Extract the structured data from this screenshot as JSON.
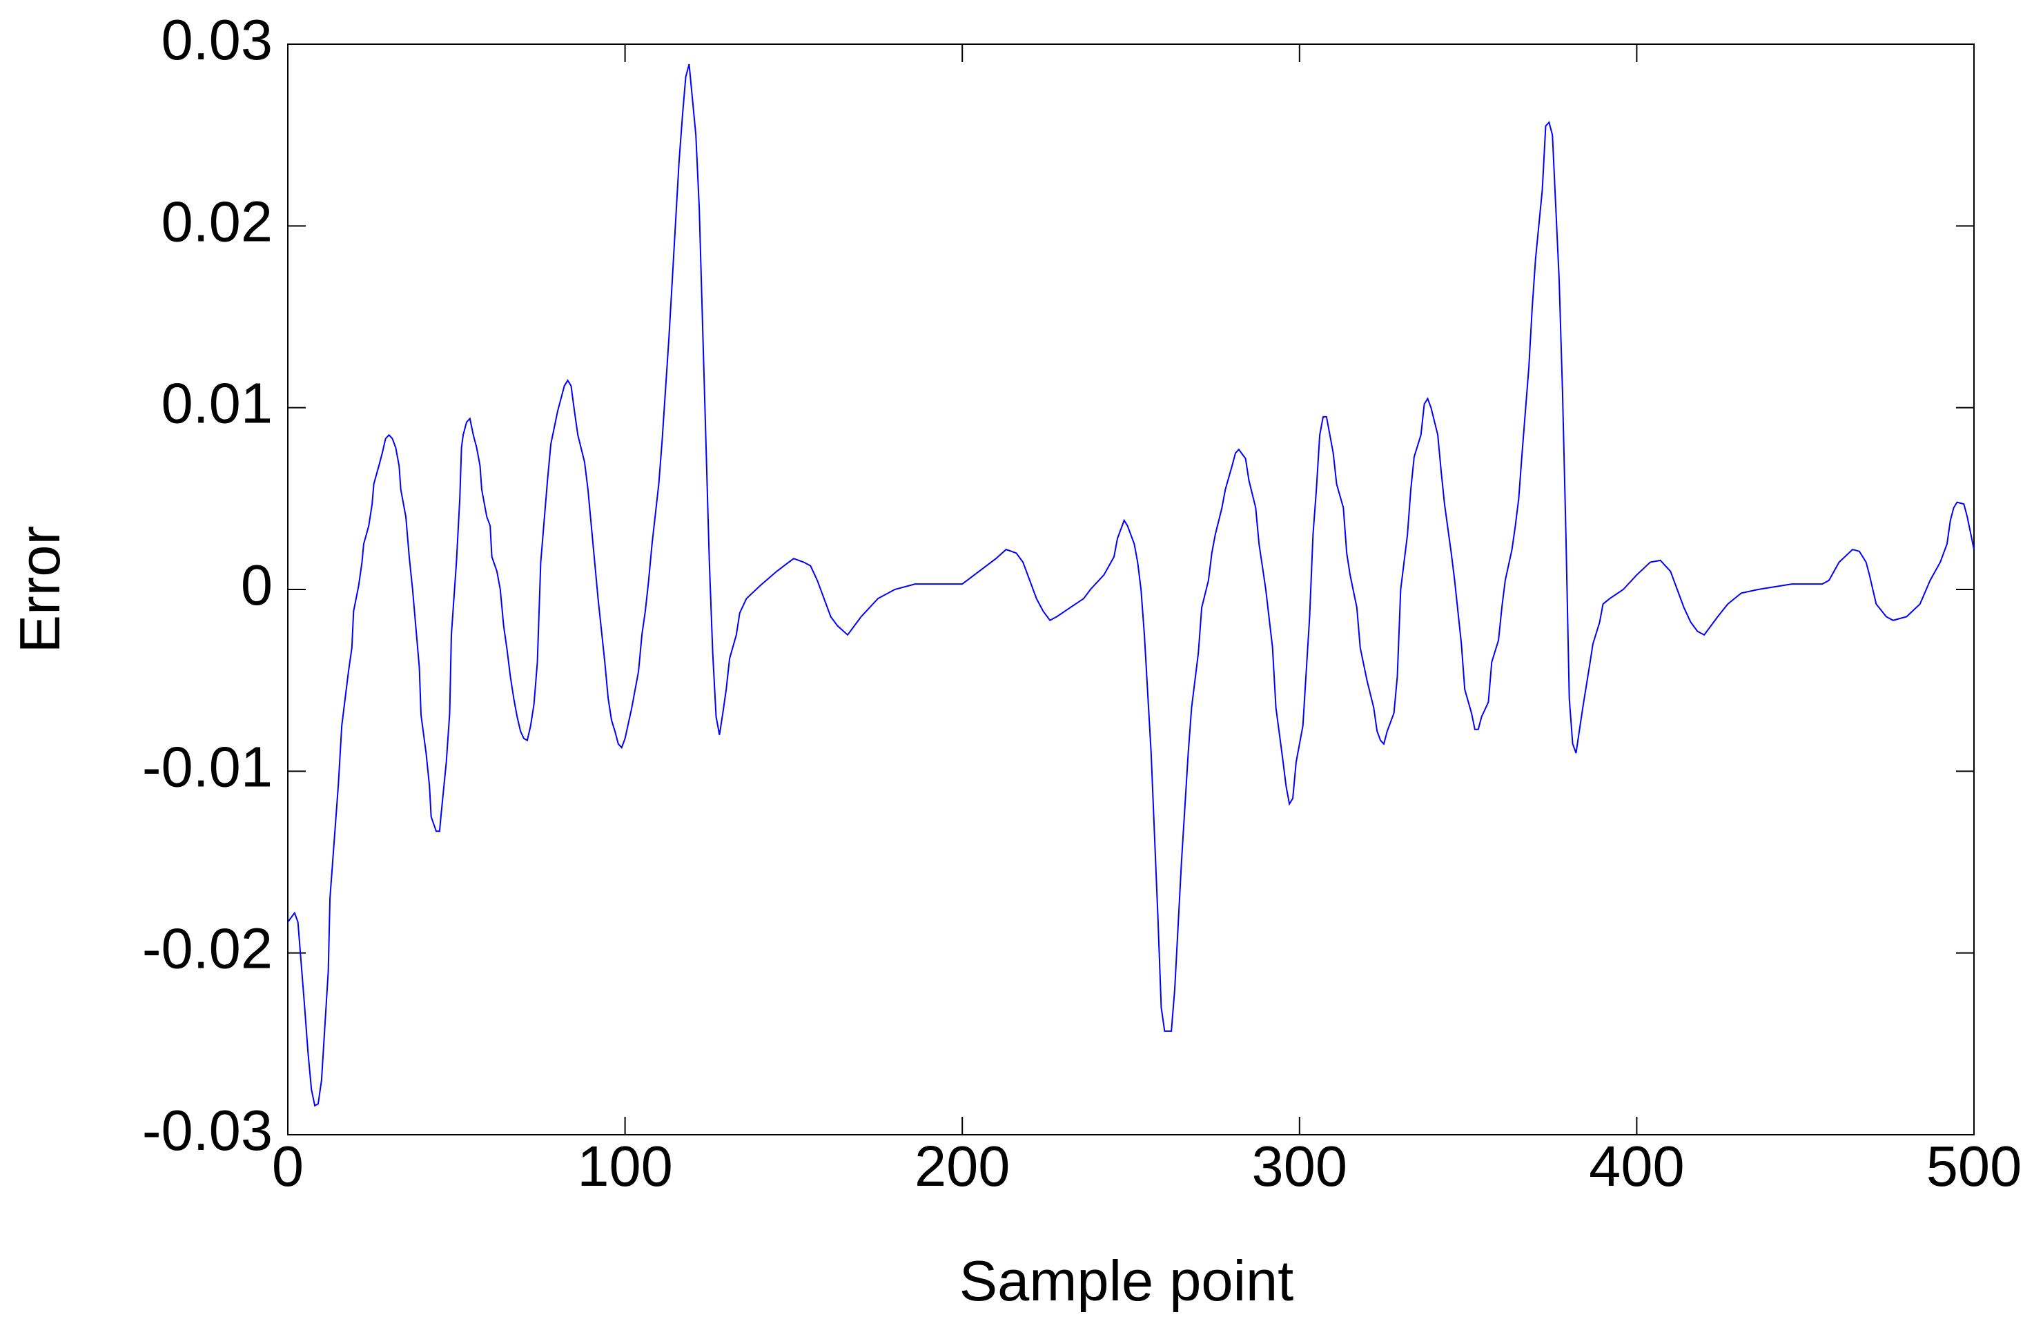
{
  "chart_data": {
    "type": "line",
    "xlabel": "Sample point",
    "ylabel": "Error",
    "color": "#0000ff",
    "xlim": [
      0,
      500
    ],
    "xticks": [
      0,
      100,
      200,
      300,
      400,
      500
    ],
    "ylim": [
      -0.03,
      0.03
    ],
    "yticks": [
      -0.03,
      -0.02,
      -0.01,
      0,
      0.01,
      0.02,
      0.03
    ],
    "grid": false,
    "x": [
      0,
      2,
      3,
      5,
      6,
      7,
      8,
      9,
      10,
      12,
      12.5,
      15,
      16,
      18,
      19,
      19.5,
      21,
      22,
      22.5,
      24,
      25,
      25.5,
      27,
      28,
      29,
      30,
      31,
      32,
      33,
      33.5,
      35,
      36,
      37,
      39,
      39.5,
      41,
      42,
      42.5,
      44,
      45,
      45.5,
      47,
      48,
      48.5,
      50,
      51,
      51.5,
      52,
      53,
      54,
      55,
      56,
      57,
      57.5,
      59,
      60,
      60.5,
      62,
      63,
      64,
      65,
      66,
      67,
      68,
      69,
      70,
      71,
      72,
      73,
      74,
      75,
      77,
      78,
      80,
      81,
      82,
      83,
      84,
      85,
      86,
      88,
      89,
      91,
      92,
      94,
      95,
      96,
      97,
      98,
      99,
      100,
      102,
      104,
      105,
      106,
      107,
      108,
      110,
      111,
      113,
      114,
      116,
      117,
      118,
      119,
      121,
      122,
      123,
      125,
      126,
      127,
      128,
      129,
      130,
      131,
      133,
      134,
      136,
      140,
      145,
      150,
      153,
      155,
      157,
      159,
      161,
      163,
      166,
      170,
      175,
      180,
      186,
      200,
      205,
      210,
      213,
      216,
      218,
      220,
      222,
      224,
      226,
      228,
      232,
      236,
      238,
      242,
      245,
      246,
      248,
      249,
      251,
      252,
      253,
      254,
      256,
      257,
      258,
      259,
      260,
      262,
      263,
      264,
      265,
      267,
      268,
      270,
      271,
      273,
      274,
      275,
      277,
      278,
      280,
      281,
      282,
      284,
      285,
      287,
      288,
      290,
      292,
      293,
      295,
      296,
      297,
      298,
      299,
      301,
      302,
      303,
      304,
      305,
      306,
      307,
      308,
      309,
      310,
      311,
      313,
      314,
      315,
      317,
      318,
      320,
      322,
      323,
      324,
      325,
      326,
      328,
      329,
      330,
      332,
      333,
      334,
      336,
      337,
      338,
      339,
      341,
      342,
      343,
      345,
      346,
      348,
      349,
      351,
      352,
      353,
      354,
      356,
      357,
      359,
      360,
      361,
      363,
      364,
      365,
      366,
      368,
      369,
      370,
      372,
      373,
      374,
      375,
      376,
      377,
      378,
      379,
      380,
      381,
      382,
      384,
      386,
      387,
      389,
      390,
      392,
      396,
      400,
      404,
      407,
      410,
      412,
      414,
      416,
      418,
      420,
      424,
      427,
      431,
      436,
      446,
      455,
      457,
      460,
      464,
      466,
      468,
      469,
      471,
      474,
      476,
      480,
      484,
      487,
      490,
      492,
      493,
      494,
      495,
      497,
      498,
      500
    ],
    "values": [
      -0.0183,
      -0.0178,
      -0.0183,
      -0.023,
      -0.0255,
      -0.0275,
      -0.0284,
      -0.0283,
      -0.027,
      -0.021,
      -0.017,
      -0.0107,
      -0.0075,
      -0.0045,
      -0.0032,
      -0.0012,
      0.0002,
      0.0015,
      0.0025,
      0.0035,
      0.0047,
      0.0058,
      0.0068,
      0.0075,
      0.0083,
      0.0085,
      0.0083,
      0.0078,
      0.0068,
      0.0055,
      0.004,
      0.0018,
      0,
      -0.0043,
      -0.0069,
      -0.009,
      -0.0108,
      -0.0125,
      -0.0133,
      -0.0133,
      -0.0123,
      -0.0095,
      -0.0068,
      -0.0025,
      0.0015,
      0.005,
      0.0078,
      0.0085,
      0.0092,
      0.0094,
      0.0085,
      0.0078,
      0.0068,
      0.0055,
      0.004,
      0.0035,
      0.0018,
      0.001,
      0,
      -0.002,
      -0.0033,
      -0.0048,
      -0.006,
      -0.007,
      -0.0078,
      -0.0082,
      -0.0083,
      -0.0075,
      -0.0063,
      -0.004,
      0.0015,
      0.006,
      0.008,
      0.0098,
      0.0105,
      0.0112,
      0.0115,
      0.0112,
      0.0098,
      0.0085,
      0.007,
      0.0055,
      0.0015,
      -0.0005,
      -0.004,
      -0.006,
      -0.0072,
      -0.0078,
      -0.0085,
      -0.0087,
      -0.0082,
      -0.0065,
      -0.0045,
      -0.0025,
      -0.0012,
      0.0005,
      0.0025,
      0.0058,
      0.0082,
      0.0138,
      0.017,
      0.0235,
      0.026,
      0.0282,
      0.0289,
      0.025,
      0.021,
      0.0145,
      0.0015,
      -0.0035,
      -0.007,
      -0.008,
      -0.0068,
      -0.0055,
      -0.0038,
      -0.0025,
      -0.0013,
      -0.0005,
      0.0002,
      0.001,
      0.0017,
      0.0015,
      0.0013,
      0.0005,
      -0.0005,
      -0.0015,
      -0.002,
      -0.0025,
      -0.0015,
      -0.0005,
      0,
      0.0003,
      0.0003,
      0.001,
      0.0017,
      0.0022,
      0.002,
      0.0015,
      0.0005,
      -0.0005,
      -0.0012,
      -0.0017,
      -0.0015,
      -0.001,
      -0.0005,
      0,
      0.0008,
      0.0018,
      0.0028,
      0.0038,
      0.0035,
      0.0025,
      0.0015,
      0,
      -0.0025,
      -0.009,
      -0.0135,
      -0.018,
      -0.023,
      -0.0243,
      -0.0243,
      -0.022,
      -0.0185,
      -0.015,
      -0.009,
      -0.0065,
      -0.0035,
      -0.001,
      0.0005,
      0.002,
      0.003,
      0.0045,
      0.0055,
      0.0068,
      0.0075,
      0.0077,
      0.0072,
      0.006,
      0.0045,
      0.0025,
      0,
      -0.0032,
      -0.0065,
      -0.0093,
      -0.0108,
      -0.0118,
      -0.0115,
      -0.0095,
      -0.0075,
      -0.0045,
      -0.0015,
      0.003,
      0.0055,
      0.0085,
      0.0095,
      0.0095,
      0.0085,
      0.0075,
      0.0058,
      0.0045,
      0.002,
      0.0008,
      -0.001,
      -0.0032,
      -0.005,
      -0.0065,
      -0.0078,
      -0.0083,
      -0.0085,
      -0.0078,
      -0.0068,
      -0.0048,
      0,
      0.003,
      0.0055,
      0.0073,
      0.0085,
      0.0102,
      0.0105,
      0.01,
      0.0085,
      0.0065,
      0.0047,
      0.002,
      0.0005,
      -0.003,
      -0.0055,
      -0.0068,
      -0.0077,
      -0.0077,
      -0.007,
      -0.0062,
      -0.004,
      -0.0028,
      -0.001,
      0.0005,
      0.0022,
      0.0035,
      0.005,
      0.0075,
      0.0122,
      0.0155,
      0.0182,
      0.022,
      0.0255,
      0.0257,
      0.025,
      0.021,
      0.017,
      0.0108,
      0.003,
      -0.006,
      -0.0085,
      -0.009,
      -0.0065,
      -0.0042,
      -0.003,
      -0.0018,
      -0.0008,
      -0.0005,
      0,
      0.0008,
      0.0015,
      0.0016,
      0.001,
      0,
      -0.001,
      -0.0018,
      -0.0023,
      -0.0025,
      -0.0015,
      -0.0008,
      -0.0002,
      0,
      0.0003,
      0.0003,
      0.0005,
      0.0015,
      0.0022,
      0.0021,
      0.0015,
      0.0008,
      -0.0008,
      -0.0015,
      -0.0017,
      -0.0015,
      -0.0008,
      0.0005,
      0.0015,
      0.0025,
      0.0038,
      0.0045,
      0.0048,
      0.0047,
      0.004,
      0.0022
    ]
  }
}
